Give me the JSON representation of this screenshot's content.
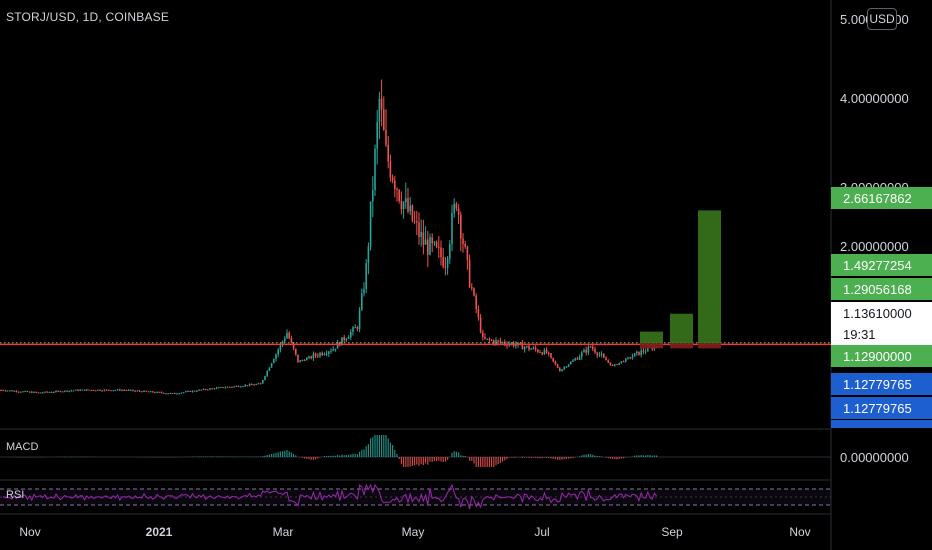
{
  "symbol": "STORJ/USD, 1D, COINBASE",
  "currency": "USD",
  "macd_label": "MACD",
  "rsi_label": "RSI",
  "macd_value": "0.00000000",
  "countdown": "19:31",
  "colors": {
    "up": "#26a69a",
    "down": "#ef5350",
    "green_box": "#38761d",
    "red_box": "#7f1d1d",
    "support_line": "#f23645",
    "dotted_line": "#8bc34a",
    "rsi_line": "#9c27b0",
    "label_green": "#4caf50",
    "label_blue": "#1e5fd0"
  },
  "chart_data": {
    "type": "candlestick",
    "symbol": "STORJ/USD",
    "interval": "1D",
    "exchange": "COINBASE",
    "x_tick_labels": [
      "Nov",
      "2021",
      "Mar",
      "May",
      "Jul",
      "Sep",
      "Nov"
    ],
    "y_tick_labels": [
      "5.00000000",
      "4.00000000",
      "3.00000000",
      "2.00000000"
    ],
    "ylim": [
      0.35,
      5.0
    ],
    "approx_close_path": [
      {
        "date": "2020-10-15",
        "close": 0.63
      },
      {
        "date": "2020-11-01",
        "close": 0.6
      },
      {
        "date": "2020-11-20",
        "close": 0.63
      },
      {
        "date": "2020-12-10",
        "close": 0.63
      },
      {
        "date": "2021-01-01",
        "close": 0.59
      },
      {
        "date": "2021-01-20",
        "close": 0.65
      },
      {
        "date": "2021-02-10",
        "close": 0.7
      },
      {
        "date": "2021-02-22",
        "close": 1.28
      },
      {
        "date": "2021-02-27",
        "close": 0.95
      },
      {
        "date": "2021-03-15",
        "close": 1.1
      },
      {
        "date": "2021-03-26",
        "close": 1.35
      },
      {
        "date": "2021-03-30",
        "close": 2.0
      },
      {
        "date": "2021-04-05",
        "close": 3.9
      },
      {
        "date": "2021-04-08",
        "close": 3.3
      },
      {
        "date": "2021-04-15",
        "close": 2.8
      },
      {
        "date": "2021-04-25",
        "close": 2.3
      },
      {
        "date": "2021-05-05",
        "close": 2.1
      },
      {
        "date": "2021-05-10",
        "close": 2.8
      },
      {
        "date": "2021-05-15",
        "close": 2.0
      },
      {
        "date": "2021-05-22",
        "close": 1.2
      },
      {
        "date": "2021-06-05",
        "close": 1.15
      },
      {
        "date": "2021-06-20",
        "close": 1.05
      },
      {
        "date": "2021-06-26",
        "close": 0.85
      },
      {
        "date": "2021-07-05",
        "close": 1.02
      },
      {
        "date": "2021-07-10",
        "close": 1.12
      },
      {
        "date": "2021-07-20",
        "close": 0.9
      },
      {
        "date": "2021-08-01",
        "close": 1.05
      },
      {
        "date": "2021-08-09",
        "close": 1.136
      }
    ],
    "last_price": 1.1361,
    "support_level": 1.129,
    "target_levels": [
      1.29056168,
      1.49277254,
      2.66167862
    ],
    "price_labels": [
      {
        "text": "2.66167862",
        "value": 2.66167862,
        "style": "green"
      },
      {
        "text": "1.49277254",
        "value": 1.49277254,
        "style": "green"
      },
      {
        "text": "1.29056168",
        "value": 1.29056168,
        "style": "green"
      },
      {
        "text": "1.13610000",
        "value": 1.1361,
        "style": "current"
      },
      {
        "text": "1.12900000",
        "value": 1.129,
        "style": "green"
      },
      {
        "text": "1.12779765",
        "value": 1.12779765,
        "style": "blue"
      },
      {
        "text": "1.12779765",
        "value": 1.12779765,
        "style": "blue"
      }
    ]
  }
}
